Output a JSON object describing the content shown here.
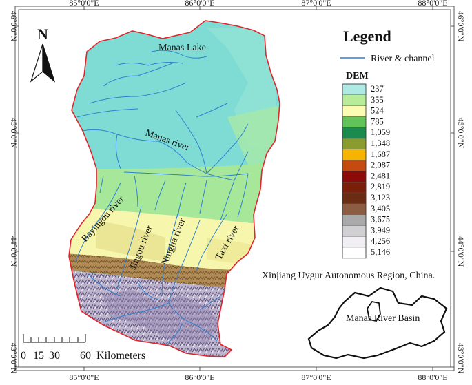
{
  "axes": {
    "top": [
      "85°0'0\"E",
      "86°0'0\"E",
      "87°0'0\"E",
      "88°0'0\"E"
    ],
    "bottom": [
      "85°0'0\"E",
      "86°0'0\"E",
      "87°0'0\"E",
      "88°0'0\"E"
    ],
    "left": [
      "46°0'0\"N",
      "45°0'0\"N",
      "44°0'0\"N",
      "43°0'0\"N"
    ],
    "right": [
      "46°0'0\"N",
      "45°0'0\"N",
      "44°0'0\"N",
      "43°0'0\"N"
    ]
  },
  "north_arrow": {
    "label": "N"
  },
  "map_labels": {
    "manas_lake": "Manas Lake",
    "manas_river": "Manas river",
    "bayingou_river": "Bayingou river",
    "jingou_river": "Jingou river",
    "ningjia_river": "Ningjia river",
    "taxi_river": "Taxi river"
  },
  "legend": {
    "title": "Legend",
    "river_label": "River & channel",
    "river_color": "#2f7fd1",
    "dem_title": "DEM",
    "dem": [
      {
        "value": "237",
        "color": "#aee9e3"
      },
      {
        "value": "355",
        "color": "#b9ec9a"
      },
      {
        "value": "524",
        "color": "#fbfbb4"
      },
      {
        "value": "785",
        "color": "#62c35a"
      },
      {
        "value": "1,059",
        "color": "#1a8a4e"
      },
      {
        "value": "1,348",
        "color": "#8a9c2e"
      },
      {
        "value": "1,687",
        "color": "#f5b400"
      },
      {
        "value": "2,087",
        "color": "#c44a0f"
      },
      {
        "value": "2,481",
        "color": "#8c0a08"
      },
      {
        "value": "2,819",
        "color": "#7a1f0a"
      },
      {
        "value": "3,123",
        "color": "#6b2c14"
      },
      {
        "value": "3,405",
        "color": "#8c5d43"
      },
      {
        "value": "3,675",
        "color": "#a9a9a9"
      },
      {
        "value": "3,949",
        "color": "#d0d0d2"
      },
      {
        "value": "4,256",
        "color": "#f1eff4"
      },
      {
        "value": "5,146",
        "color": "#ffffff"
      }
    ]
  },
  "inset": {
    "caption": "Xinjiang Uygur Autonomous Region, China.",
    "basin_label": "Manas River Basin"
  },
  "scale_bar": {
    "ticks": [
      "0",
      "15",
      "30",
      "60"
    ],
    "unit": "Kilometers"
  },
  "colors": {
    "boundary": "#e0242b",
    "river": "#2f7fd1"
  }
}
